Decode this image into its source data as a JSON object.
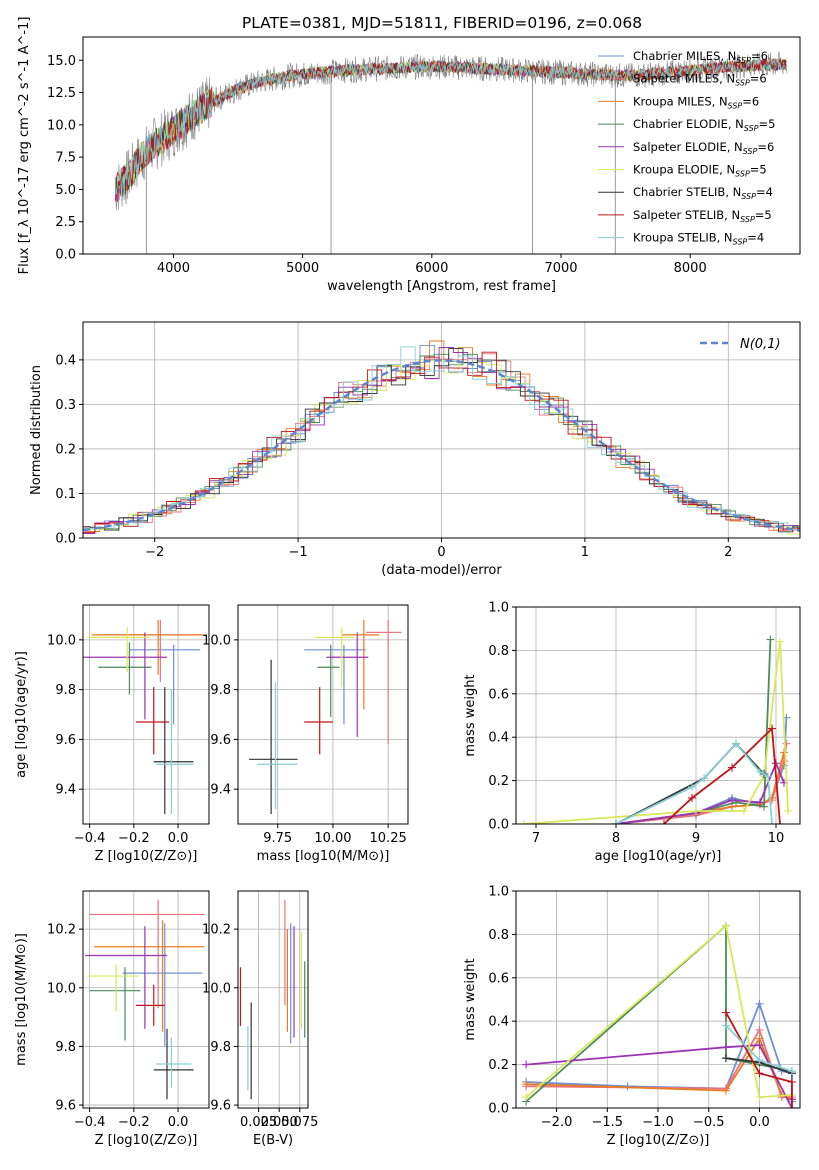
{
  "figure": {
    "title": "PLATE=0381, MJD=51811, FIBERID=0196, z=0.068"
  },
  "series_styles": [
    {
      "name": "Chabrier MILES",
      "nssp": "6",
      "color": "#6d8fd6"
    },
    {
      "name": "Salpeter MILES",
      "nssp": "6",
      "color": "#e8757e"
    },
    {
      "name": "Kroupa MILES",
      "nssp": "6",
      "color": "#ea7b22"
    },
    {
      "name": "Chabrier ELODIE",
      "nssp": "5",
      "color": "#4e8a5a"
    },
    {
      "name": "Salpeter ELODIE",
      "nssp": "6",
      "color": "#9b34b0"
    },
    {
      "name": "Kroupa ELODIE",
      "nssp": "5",
      "color": "#d8e85a"
    },
    {
      "name": "Chabrier STELIB",
      "nssp": "4",
      "color": "#333333"
    },
    {
      "name": "Salpeter STELIB",
      "nssp": "5",
      "color": "#c0141c"
    },
    {
      "name": "Kroupa STELIB",
      "nssp": "4",
      "color": "#86cfd4"
    }
  ],
  "chart_data": [
    {
      "type": "line",
      "id": "spectrum",
      "title": "PLATE=0381, MJD=51811, FIBERID=0196, z=0.068",
      "xlabel": "wavelength [Angstrom, rest frame]",
      "ylabel": "Flux [f_λ 10^-17 erg cm^-2 s^-1 A^-1]",
      "xlim": [
        3300,
        8850
      ],
      "ylim": [
        0,
        16.8
      ],
      "xticks": [
        4000,
        5000,
        6000,
        7000,
        8000
      ],
      "yticks": [
        0.0,
        2.5,
        5.0,
        7.5,
        10.0,
        12.5,
        15.0
      ],
      "legend": "right",
      "observed_continuum": {
        "x": [
          3550,
          3650,
          3750,
          3850,
          3950,
          4050,
          4150,
          4300,
          4500,
          4700,
          4900,
          5100,
          5300,
          5500,
          5700,
          5900,
          6100,
          6300,
          6500,
          6700,
          6900,
          7100,
          7300,
          7500,
          7700,
          7900,
          8100,
          8300,
          8500,
          8750
        ],
        "y": [
          5.0,
          6.0,
          7.5,
          8.5,
          9.2,
          10.0,
          10.8,
          11.8,
          12.8,
          13.4,
          13.8,
          14.0,
          14.2,
          14.3,
          14.4,
          14.5,
          14.5,
          14.4,
          14.3,
          14.2,
          14.1,
          14.0,
          13.9,
          13.8,
          13.9,
          14.1,
          14.3,
          14.5,
          14.6,
          14.7
        ]
      },
      "model_fit": {
        "x": [
          3550,
          3650,
          3750,
          3850,
          3950,
          4050,
          4150,
          4300,
          4500,
          4700,
          4900,
          5100,
          5300,
          5500,
          5700,
          5900,
          6100,
          6300,
          6500,
          6700,
          6900,
          7100,
          7300,
          7500,
          7700,
          7900,
          8100,
          8300,
          8500,
          8750
        ],
        "y": [
          5.0,
          6.0,
          7.5,
          8.5,
          9.2,
          10.0,
          10.8,
          11.8,
          12.8,
          13.4,
          13.8,
          14.0,
          14.2,
          14.3,
          14.4,
          14.5,
          14.5,
          14.4,
          14.3,
          14.2,
          14.1,
          14.0,
          13.9,
          13.8,
          13.9,
          14.1,
          14.3,
          14.5,
          14.6,
          14.7
        ]
      },
      "spikes": [
        {
          "x": 3790,
          "ymin": 0.0
        },
        {
          "x": 5220,
          "ymin": 0.0
        },
        {
          "x": 6780,
          "ymin": 0.0
        },
        {
          "x": 7420,
          "ymin": 0.0
        }
      ]
    },
    {
      "type": "line",
      "id": "residual-hist",
      "xlabel": "(data-model)/error",
      "ylabel": "Normed distribution",
      "xlim": [
        -2.5,
        2.5
      ],
      "ylim": [
        0,
        0.485
      ],
      "xticks": [
        -2,
        -1,
        0,
        1,
        2
      ],
      "yticks": [
        0.0,
        0.1,
        0.2,
        0.3,
        0.4
      ],
      "grid": true,
      "legend": "top-right",
      "legend_label": "N(0,1)",
      "gaussian": {
        "mu": 0,
        "sigma": 1
      }
    },
    {
      "type": "scatter",
      "id": "age-vs-Z",
      "xlabel": "Z [log10(Z/Z⊙)]",
      "ylabel": "age [log10(age/yr)]",
      "xlim": [
        -0.43,
        0.14
      ],
      "ylim": [
        9.26,
        10.14
      ],
      "xticks": [
        -0.4,
        -0.2,
        0.0
      ],
      "yticks": [
        9.4,
        9.6,
        9.8,
        10.0
      ],
      "grid": true,
      "points": [
        {
          "s": 0,
          "x": -0.02,
          "xerr": [
            0.2,
            0.12
          ],
          "y": 9.96,
          "yerr": [
            0.3,
            0.02
          ]
        },
        {
          "s": 1,
          "x": -0.08,
          "xerr": [
            0.28,
            0.19
          ],
          "y": 10.02,
          "yerr": [
            0.19,
            0.06
          ]
        },
        {
          "s": 2,
          "x": -0.09,
          "xerr": [
            0.3,
            0.21
          ],
          "y": 10.02,
          "yerr": [
            0.16,
            0.06
          ]
        },
        {
          "s": 3,
          "x": -0.22,
          "xerr": [
            0.14,
            0.1
          ],
          "y": 9.89,
          "yerr": [
            0.11,
            0.1
          ]
        },
        {
          "s": 4,
          "x": -0.15,
          "xerr": [
            0.28,
            0.1
          ],
          "y": 9.93,
          "yerr": [
            0.25,
            0.1
          ]
        },
        {
          "s": 5,
          "x": -0.23,
          "xerr": [
            0.18,
            0.1
          ],
          "y": 10.01,
          "yerr": [
            0.14,
            0.04
          ]
        },
        {
          "s": 6,
          "x": -0.06,
          "xerr": [
            0.05,
            0.13
          ],
          "y": 9.51,
          "yerr": [
            0.21,
            0.3
          ]
        },
        {
          "s": 7,
          "x": -0.11,
          "xerr": [
            0.08,
            0.07
          ],
          "y": 9.67,
          "yerr": [
            0.13,
            0.14
          ]
        },
        {
          "s": 8,
          "x": -0.03,
          "xerr": [
            0.07,
            0.1
          ],
          "y": 9.5,
          "yerr": [
            0.2,
            0.3
          ]
        }
      ]
    },
    {
      "type": "scatter",
      "id": "age-vs-mass",
      "xlabel": "mass [log10(M/M⊙)]",
      "ylabel": "",
      "xlim": [
        9.57,
        10.34
      ],
      "ylim": [
        9.26,
        10.14
      ],
      "xticks": [
        9.75,
        10.0,
        10.25
      ],
      "yticks": [
        9.4,
        9.6,
        9.8,
        10.0
      ],
      "grid": true,
      "points": [
        {
          "s": 0,
          "x": 10.05,
          "xerr": [
            0.18,
            0.1
          ],
          "y": 9.96,
          "yerr": [
            0.3,
            0.02
          ]
        },
        {
          "s": 1,
          "x": 10.25,
          "xerr": [
            0.1,
            0.06
          ],
          "y": 10.03,
          "yerr": [
            0.45,
            0.05
          ]
        },
        {
          "s": 2,
          "x": 10.14,
          "xerr": [
            0.1,
            0.07
          ],
          "y": 10.02,
          "yerr": [
            0.3,
            0.06
          ]
        },
        {
          "s": 3,
          "x": 9.99,
          "xerr": [
            0.06,
            0.04
          ],
          "y": 9.89,
          "yerr": [
            0.2,
            0.09
          ]
        },
        {
          "s": 4,
          "x": 10.11,
          "xerr": [
            0.14,
            0.05
          ],
          "y": 9.93,
          "yerr": [
            0.32,
            0.1
          ]
        },
        {
          "s": 5,
          "x": 10.04,
          "xerr": [
            0.12,
            0.06
          ],
          "y": 10.01,
          "yerr": [
            0.2,
            0.04
          ]
        },
        {
          "s": 6,
          "x": 9.72,
          "xerr": [
            0.1,
            0.12
          ],
          "y": 9.52,
          "yerr": [
            0.22,
            0.4
          ]
        },
        {
          "s": 7,
          "x": 9.94,
          "xerr": [
            0.07,
            0.06
          ],
          "y": 9.67,
          "yerr": [
            0.13,
            0.14
          ]
        },
        {
          "s": 8,
          "x": 9.74,
          "xerr": [
            0.08,
            0.1
          ],
          "y": 9.5,
          "yerr": [
            0.18,
            0.33
          ]
        }
      ]
    },
    {
      "type": "line",
      "id": "weight-vs-age",
      "xlabel": "age [log10(age/yr)]",
      "ylabel": "mass weight",
      "xlim": [
        6.75,
        10.3
      ],
      "ylim": [
        0.0,
        1.0
      ],
      "xticks": [
        7,
        8,
        9,
        10
      ],
      "yticks": [
        0.0,
        0.2,
        0.4,
        0.6,
        0.8,
        1.0
      ],
      "grid": true,
      "series": [
        {
          "s": 0,
          "x": [
            8.0,
            9.0,
            9.45,
            9.8,
            9.95,
            10.1,
            10.13
          ],
          "y": [
            0.0,
            0.05,
            0.12,
            0.09,
            0.12,
            0.27,
            0.49
          ]
        },
        {
          "s": 1,
          "x": [
            8.0,
            9.0,
            9.45,
            9.8,
            9.95,
            10.1,
            10.13
          ],
          "y": [
            0.0,
            0.04,
            0.08,
            0.09,
            0.11,
            0.29,
            0.37
          ]
        },
        {
          "s": 2,
          "x": [
            8.0,
            9.0,
            9.45,
            9.8,
            9.95,
            10.1
          ],
          "y": [
            0.0,
            0.05,
            0.08,
            0.09,
            0.12,
            0.33
          ]
        },
        {
          "s": 3,
          "x": [
            8.0,
            9.0,
            9.5,
            9.85,
            9.93
          ],
          "y": [
            0.0,
            0.05,
            0.1,
            0.08,
            0.85
          ]
        },
        {
          "s": 4,
          "x": [
            8.0,
            9.0,
            9.45,
            9.8,
            10.0,
            10.1
          ],
          "y": [
            0.0,
            0.05,
            0.11,
            0.1,
            0.28,
            0.19
          ]
        },
        {
          "s": 5,
          "x": [
            6.85,
            9.0,
            9.6,
            9.85,
            10.05,
            10.15
          ],
          "y": [
            0.0,
            0.06,
            0.06,
            0.22,
            0.84,
            0.06
          ]
        },
        {
          "s": 6,
          "x": [
            8.0,
            9.1,
            9.5,
            9.85
          ],
          "y": [
            0.0,
            0.21,
            0.37,
            0.23
          ]
        },
        {
          "s": 7,
          "x": [
            8.6,
            8.95,
            9.45,
            9.95,
            10.05
          ],
          "y": [
            0.0,
            0.12,
            0.26,
            0.44,
            0.0
          ]
        },
        {
          "s": 8,
          "x": [
            8.0,
            8.95,
            9.1,
            9.5,
            9.8,
            9.9,
            9.95
          ],
          "y": [
            0.0,
            0.17,
            0.21,
            0.37,
            0.24,
            0.22,
            0.0
          ]
        }
      ]
    },
    {
      "type": "scatter",
      "id": "mass-vs-Z",
      "xlabel": "Z [log10(Z/Z⊙)]",
      "ylabel": "mass [log10(M/M⊙)]",
      "xlim": [
        -0.43,
        0.14
      ],
      "ylim": [
        9.59,
        10.33
      ],
      "xticks": [
        -0.4,
        -0.2,
        0.0
      ],
      "yticks": [
        9.6,
        9.8,
        10.0,
        10.2
      ],
      "grid": true,
      "points": [
        {
          "s": 0,
          "x": -0.06,
          "xerr": [
            0.19,
            0.17
          ],
          "y": 10.05,
          "yerr": [
            0.25,
            0.17
          ]
        },
        {
          "s": 1,
          "x": -0.09,
          "xerr": [
            0.31,
            0.21
          ],
          "y": 10.25,
          "yerr": [
            0.32,
            0.05
          ]
        },
        {
          "s": 2,
          "x": -0.07,
          "xerr": [
            0.31,
            0.19
          ],
          "y": 10.14,
          "yerr": [
            0.29,
            0.09
          ]
        },
        {
          "s": 3,
          "x": -0.24,
          "xerr": [
            0.16,
            0.07
          ],
          "y": 9.99,
          "yerr": [
            0.17,
            0.08
          ]
        },
        {
          "s": 4,
          "x": -0.15,
          "xerr": [
            0.27,
            0.1
          ],
          "y": 10.11,
          "yerr": [
            0.25,
            0.1
          ]
        },
        {
          "s": 5,
          "x": -0.28,
          "xerr": [
            0.13,
            0.1
          ],
          "y": 10.04,
          "yerr": [
            0.12,
            0.04
          ]
        },
        {
          "s": 6,
          "x": -0.05,
          "xerr": [
            0.06,
            0.12
          ],
          "y": 9.72,
          "yerr": [
            0.1,
            0.14
          ]
        },
        {
          "s": 7,
          "x": -0.11,
          "xerr": [
            0.08,
            0.05
          ],
          "y": 9.94,
          "yerr": [
            0.07,
            0.07
          ]
        },
        {
          "s": 8,
          "x": -0.03,
          "xerr": [
            0.07,
            0.09
          ],
          "y": 9.74,
          "yerr": [
            0.08,
            0.09
          ]
        }
      ]
    },
    {
      "type": "scatter",
      "id": "mass-vs-ebv",
      "xlabel": "E(B-V)",
      "ylabel": "",
      "xlim": [
        0.0,
        0.085
      ],
      "ylim": [
        9.59,
        10.33
      ],
      "xticks": [
        0.025,
        0.05,
        0.075
      ],
      "xticklabels": [
        "0.025",
        "0.050",
        "0.075"
      ],
      "yticks": [
        9.6,
        9.8,
        10.0,
        10.2
      ],
      "grid": true,
      "points": [
        {
          "s": 0,
          "x": 0.064,
          "y": 10.01,
          "yerr": [
            0.2,
            0.21
          ]
        },
        {
          "s": 1,
          "x": 0.057,
          "y": 10.12,
          "yerr": [
            0.18,
            0.18
          ]
        },
        {
          "s": 2,
          "x": 0.06,
          "y": 10.05,
          "yerr": [
            0.2,
            0.15
          ]
        },
        {
          "s": 3,
          "x": 0.081,
          "y": 9.99,
          "yerr": [
            0.16,
            0.1
          ]
        },
        {
          "s": 4,
          "x": 0.068,
          "y": 10.03,
          "yerr": [
            0.2,
            0.18
          ]
        },
        {
          "s": 5,
          "x": 0.077,
          "y": 10.01,
          "yerr": [
            0.15,
            0.18
          ]
        },
        {
          "s": 6,
          "x": 0.016,
          "y": 9.79,
          "yerr": [
            0.17,
            0.16
          ]
        },
        {
          "s": 7,
          "x": 0.003,
          "y": 9.97,
          "yerr": [
            0.1,
            0.1
          ]
        },
        {
          "s": 8,
          "x": 0.012,
          "y": 9.76,
          "yerr": [
            0.11,
            0.11
          ]
        }
      ]
    },
    {
      "type": "line",
      "id": "weight-vs-Z",
      "xlabel": "Z [log10(Z/Z⊙)]",
      "ylabel": "mass weight",
      "xlim": [
        -2.4,
        0.4
      ],
      "ylim": [
        0.0,
        1.0
      ],
      "xticks": [
        -2.0,
        -1.5,
        -1.0,
        -0.5,
        0.0
      ],
      "xticklabels": [
        "−2.0",
        "−1.5",
        "−1.0",
        "−0.5",
        "0.0"
      ],
      "yticks": [
        0.0,
        0.2,
        0.4,
        0.6,
        0.8,
        1.0
      ],
      "grid": true,
      "series": [
        {
          "s": 0,
          "x": [
            -2.3,
            -1.3,
            -0.33,
            0.0,
            0.22,
            0.32,
            0.32
          ],
          "y": [
            0.12,
            0.1,
            0.09,
            0.48,
            0.17,
            0.16,
            0.03
          ]
        },
        {
          "s": 1,
          "x": [
            -2.3,
            -0.33,
            0.0,
            0.22,
            0.32
          ],
          "y": [
            0.1,
            0.09,
            0.36,
            0.05,
            0.05
          ]
        },
        {
          "s": 2,
          "x": [
            -2.3,
            -0.33,
            0.0,
            0.22,
            0.32
          ],
          "y": [
            0.11,
            0.08,
            0.32,
            0.06,
            0.04
          ]
        },
        {
          "s": 3,
          "x": [
            -2.3,
            -0.33,
            -0.33,
            0.32
          ],
          "y": [
            0.03,
            0.84,
            0.23,
            0.17
          ]
        },
        {
          "s": 4,
          "x": [
            -2.3,
            -0.33,
            0.0,
            0.32,
            0.32
          ],
          "y": [
            0.2,
            0.28,
            0.29,
            0.0,
            0.04
          ]
        },
        {
          "s": 5,
          "x": [
            -2.3,
            -0.33,
            0.0,
            0.32
          ],
          "y": [
            0.05,
            0.84,
            0.05,
            0.06
          ]
        },
        {
          "s": 6,
          "x": [
            -0.33,
            0.0,
            0.32
          ],
          "y": [
            0.23,
            0.21,
            0.16
          ]
        },
        {
          "s": 7,
          "x": [
            -0.33,
            0.0,
            0.32,
            0.32
          ],
          "y": [
            0.44,
            0.16,
            0.12,
            0.0
          ]
        },
        {
          "s": 8,
          "x": [
            -0.33,
            0.0,
            0.32
          ],
          "y": [
            0.38,
            0.22,
            0.17
          ]
        }
      ]
    }
  ]
}
